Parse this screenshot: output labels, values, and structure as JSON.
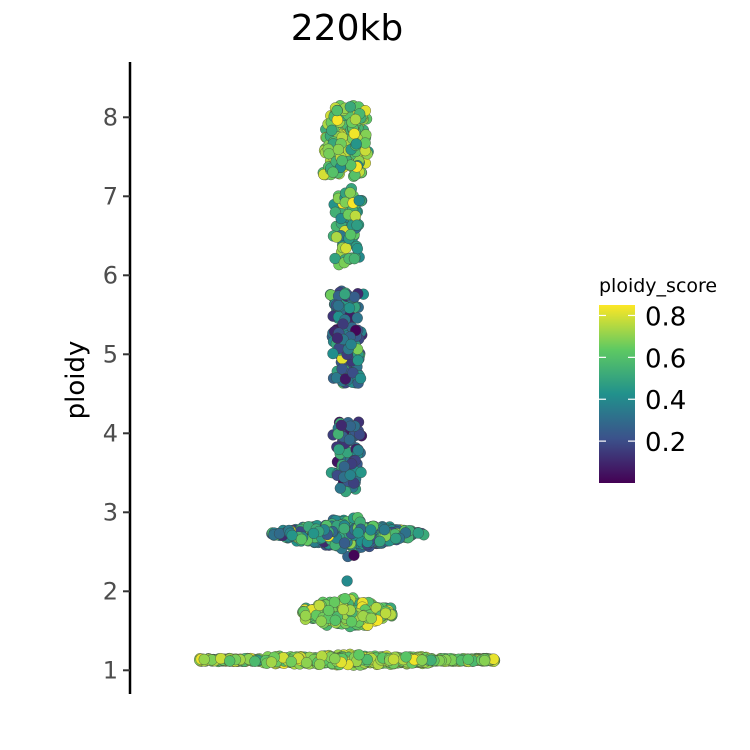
{
  "chart_data": {
    "type": "scatter",
    "subtype": "beeswarm",
    "title": "220kb",
    "ylabel": "ploidy",
    "xlabel": "",
    "ylim": [
      0.7,
      8.7
    ],
    "yticks": [
      1,
      2,
      3,
      4,
      5,
      6,
      7,
      8
    ],
    "grid": false,
    "color_scale": {
      "name": "ploidy_score",
      "palette": "viridis",
      "colors": [
        "#440154",
        "#3b528b",
        "#21918c",
        "#5ec962",
        "#fde725"
      ],
      "range": [
        0.0,
        0.85
      ],
      "ticks": [
        0.8,
        0.6,
        0.4,
        0.2
      ],
      "tick_labels": [
        "0.8",
        "0.6",
        "0.4",
        "0.2"
      ],
      "placement": "right"
    },
    "clusters": [
      {
        "ploidy_center": 1.13,
        "ploidy_spread": 0.05,
        "count": 900,
        "score_mean": 0.7,
        "score_sd": 0.07
      },
      {
        "ploidy_center": 1.72,
        "ploidy_spread": 0.15,
        "count": 280,
        "score_mean": 0.68,
        "score_sd": 0.08
      },
      {
        "ploidy_center": 2.72,
        "ploidy_spread": 0.15,
        "count": 560,
        "score_mean": 0.4,
        "score_sd": 0.14
      },
      {
        "ploidy_center": 2.13,
        "ploidy_spread": 0.0,
        "count": 1,
        "score_mean": 0.4,
        "score_sd": 0.0
      },
      {
        "ploidy_center": 3.7,
        "ploidy_spread": 0.45,
        "count": 90,
        "score_mean": 0.28,
        "score_sd": 0.14
      },
      {
        "ploidy_center": 5.2,
        "ploidy_spread": 0.6,
        "count": 130,
        "score_mean": 0.35,
        "score_sd": 0.16
      },
      {
        "ploidy_center": 6.6,
        "ploidy_spread": 0.5,
        "count": 70,
        "score_mean": 0.55,
        "score_sd": 0.12
      },
      {
        "ploidy_center": 7.7,
        "ploidy_spread": 0.45,
        "count": 220,
        "score_mean": 0.68,
        "score_sd": 0.1
      }
    ]
  }
}
